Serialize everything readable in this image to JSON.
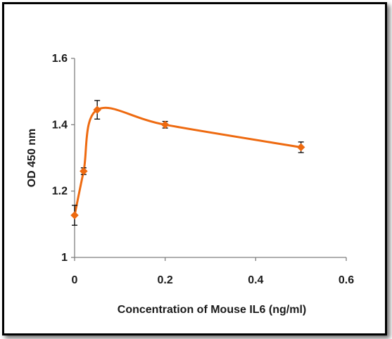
{
  "chart_data": {
    "type": "line",
    "title": "",
    "xlabel": "Concentration of Mouse IL6 (ng/ml)",
    "ylabel": "OD 450 nm",
    "xlim": [
      0,
      0.6
    ],
    "ylim": [
      1,
      1.6
    ],
    "x_ticks": [
      0,
      0.2,
      0.4,
      0.6
    ],
    "y_ticks": [
      1,
      1.2,
      1.4,
      1.6
    ],
    "x_tick_labels": [
      "0",
      "0.2",
      "0.4",
      "0.6"
    ],
    "y_tick_labels": [
      "1",
      "1.2",
      "1.4",
      "1.6"
    ],
    "grid": false,
    "legend": "none",
    "smooth": true,
    "series": [
      {
        "color": "#ee6a10",
        "marker": "diamond",
        "x": [
          0,
          0.02,
          0.05,
          0.2,
          0.5
        ],
        "y": [
          1.127,
          1.26,
          1.445,
          1.4,
          1.332
        ],
        "error": [
          0.03,
          0.01,
          0.028,
          0.01,
          0.016
        ]
      }
    ]
  }
}
